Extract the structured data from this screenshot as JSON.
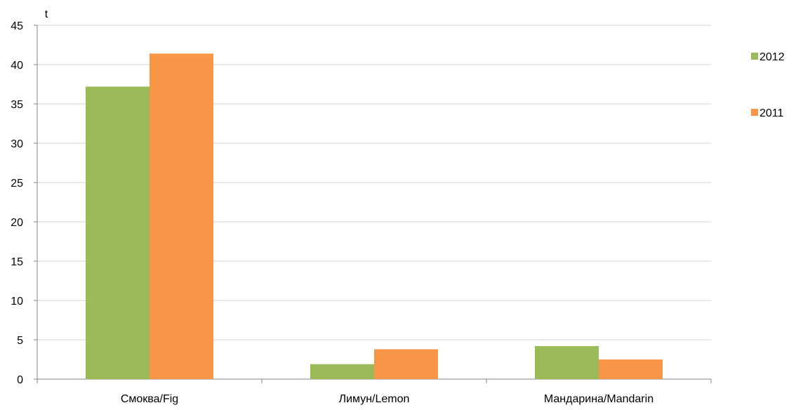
{
  "chart_data": {
    "type": "bar",
    "ylabel": "t",
    "ylim": [
      0,
      45
    ],
    "yticks": [
      0,
      5,
      10,
      15,
      20,
      25,
      30,
      35,
      40,
      45
    ],
    "grid": true,
    "legend_position": "right",
    "categories": [
      "Смоква/Fig",
      "Лимун/Lemon",
      "Мандарина/Mandarin"
    ],
    "series": [
      {
        "name": "2012",
        "color": "#9bbb59",
        "values": [
          37.2,
          1.9,
          4.2
        ]
      },
      {
        "name": "2011",
        "color": "#f79646",
        "values": [
          41.4,
          3.8,
          2.5
        ]
      }
    ]
  }
}
